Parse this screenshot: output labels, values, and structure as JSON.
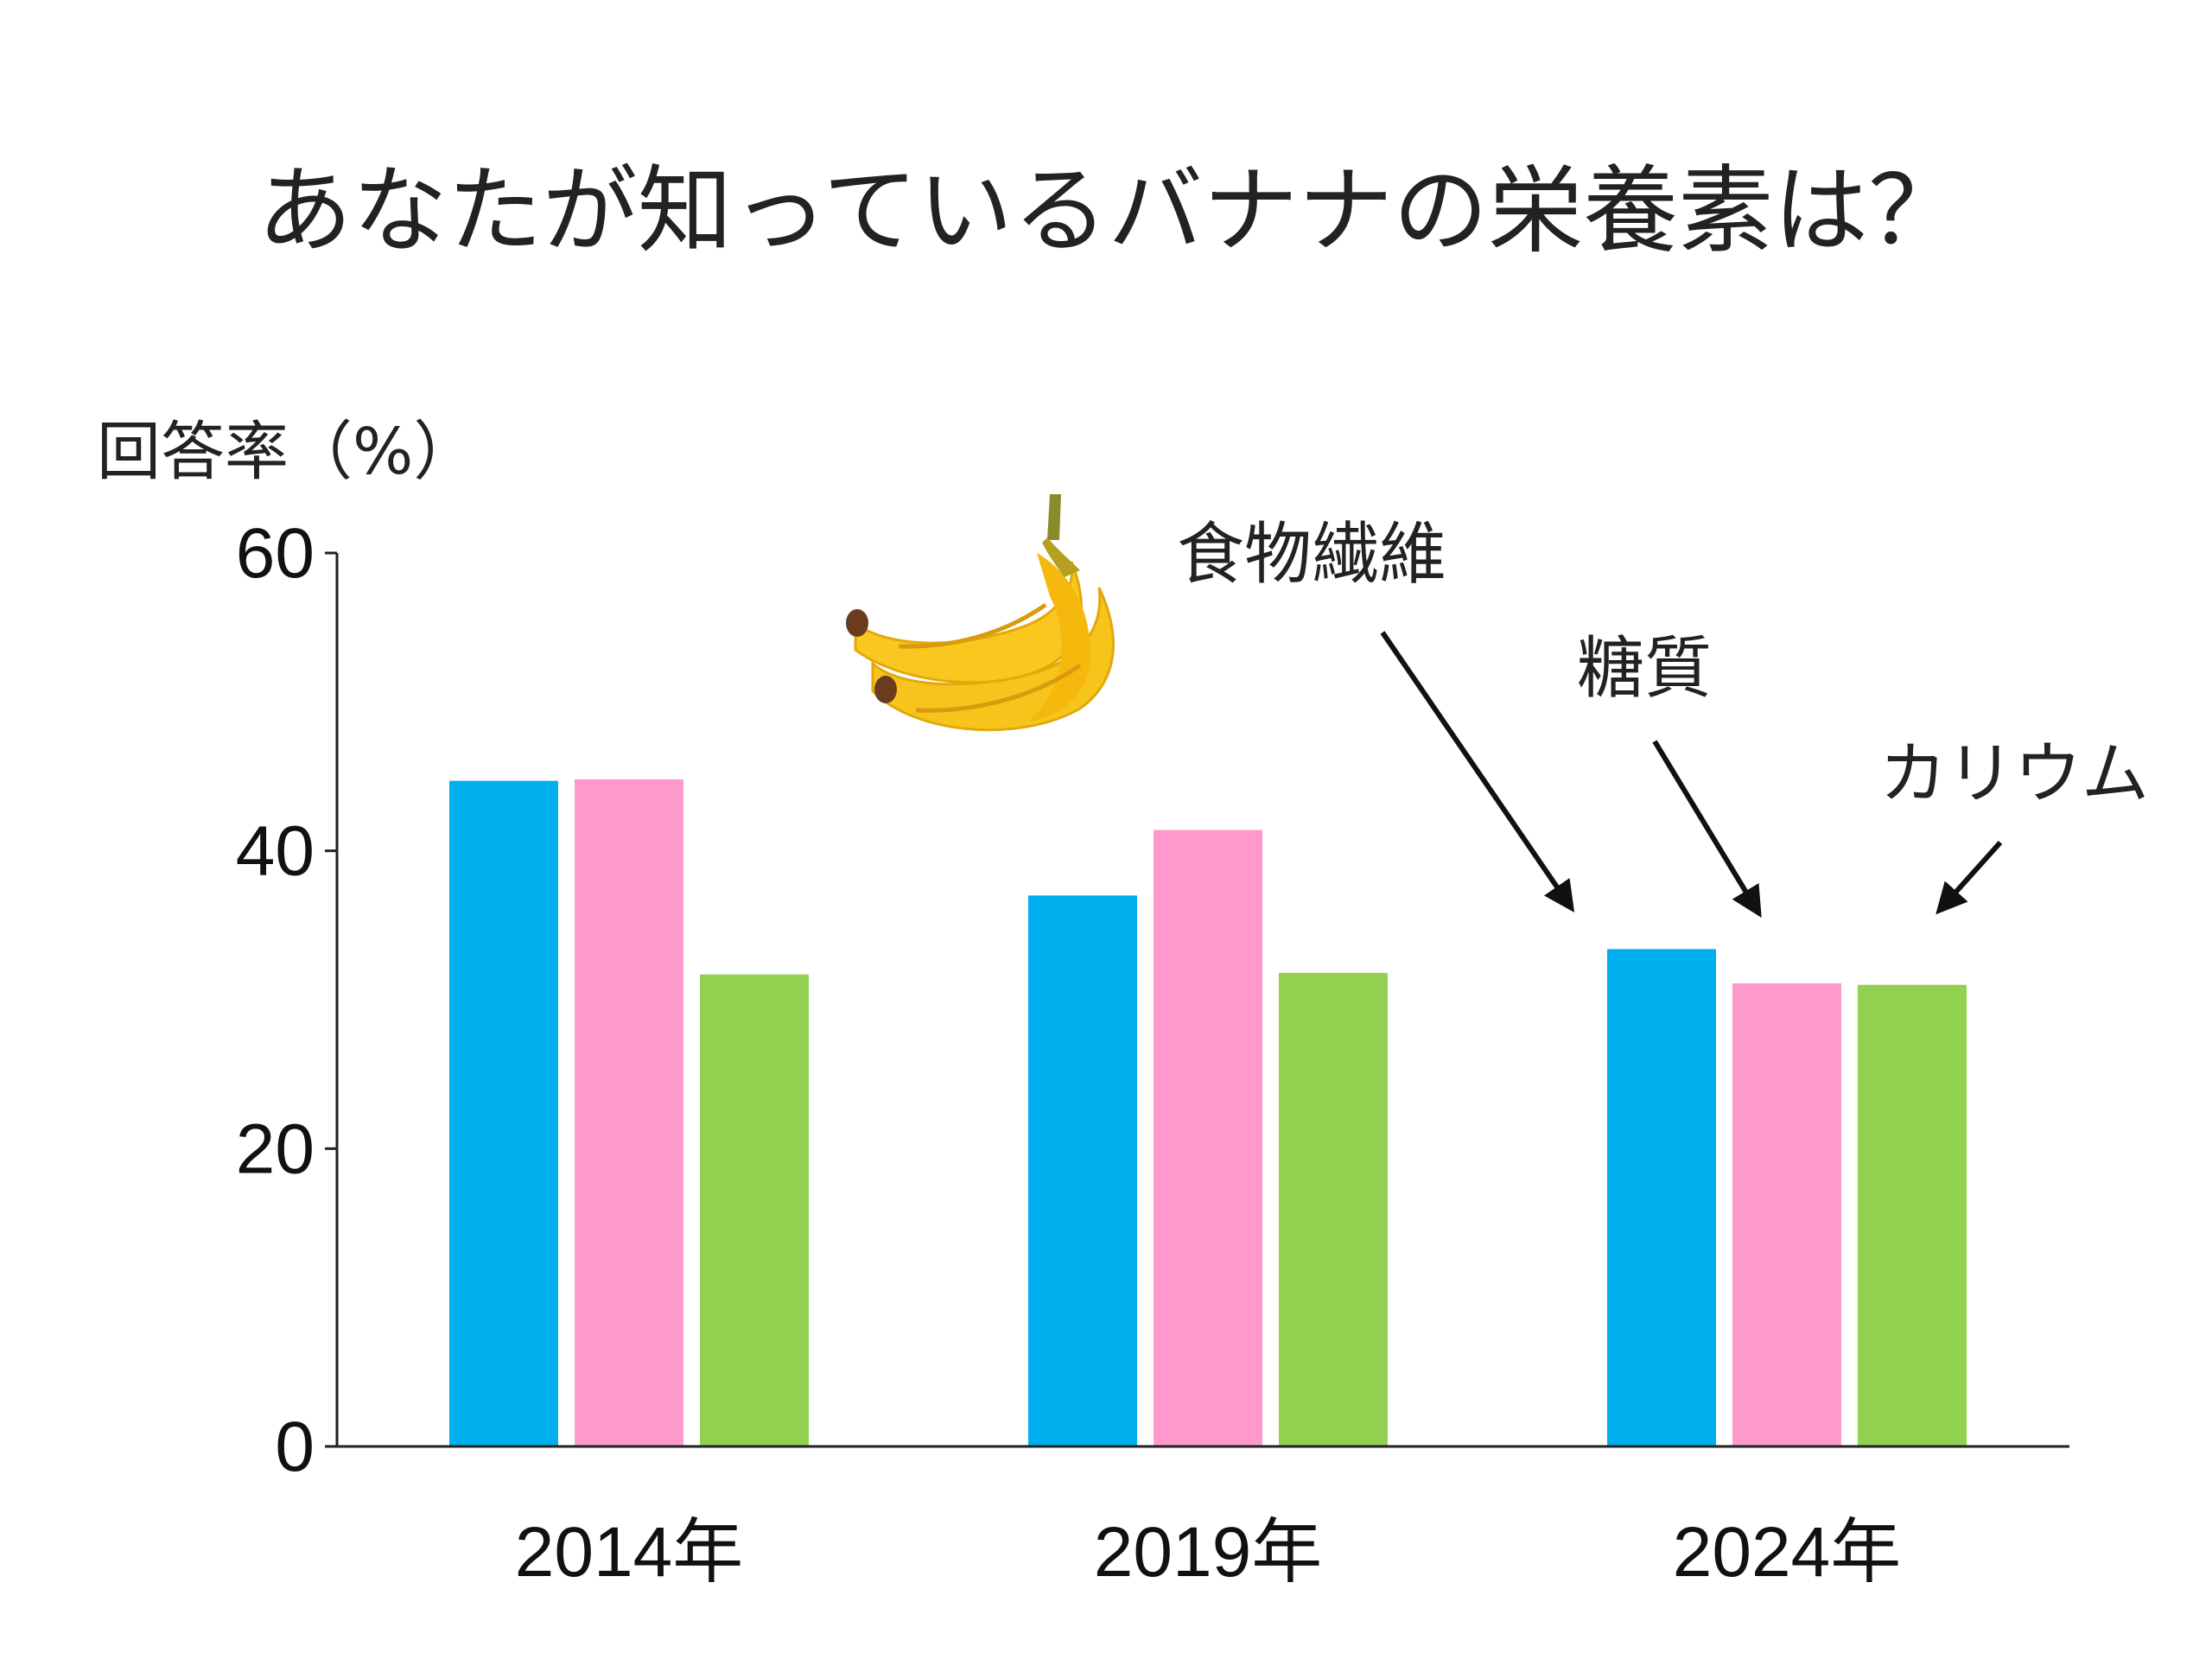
{
  "chart_data": {
    "type": "bar",
    "title": "あなたが知っているバナナの栄養素は？",
    "ylabel": "回答率（%）",
    "xlabel": "",
    "ylim": [
      0,
      60
    ],
    "yticks": [
      0,
      20,
      40,
      60
    ],
    "grid": false,
    "legend": "none",
    "categories": [
      "2014年",
      "2019年",
      "2024年"
    ],
    "series": [
      {
        "name": "食物繊維",
        "color": "#00b0ee",
        "values": [
          44.7,
          37.0,
          33.4
        ]
      },
      {
        "name": "糖質",
        "color": "#ff99cc",
        "values": [
          44.8,
          41.4,
          31.1
        ]
      },
      {
        "name": "カリウム",
        "color": "#92d050",
        "values": [
          31.7,
          31.8,
          31.0
        ]
      }
    ],
    "annotations": [
      "食物繊維",
      "糖質",
      "カリウム"
    ]
  },
  "decor": {
    "banana": "banana-icon"
  }
}
